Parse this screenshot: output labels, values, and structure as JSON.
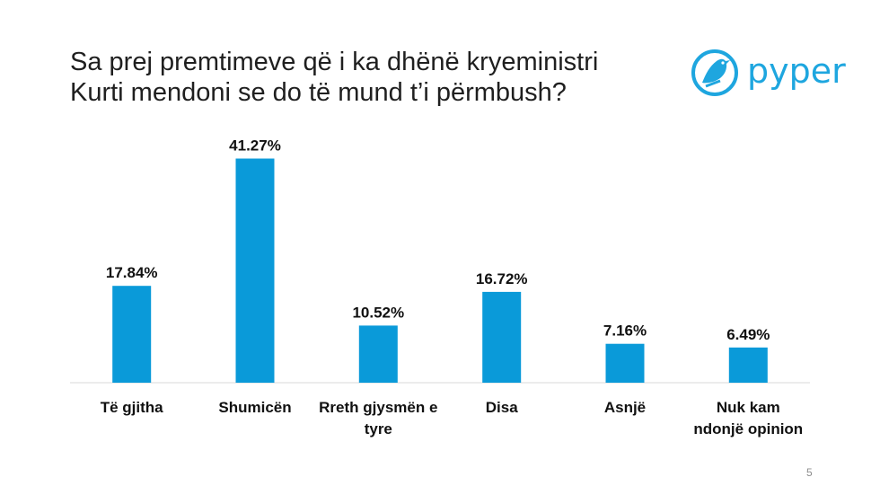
{
  "title": "Sa prej premtimeve që i ka dhënë kryeministri Kurti mendoni se do të mund t’i përmbush?",
  "logo": {
    "text": "pyper",
    "icon": "bird-icon",
    "color": "#1ea6df"
  },
  "slide_number": "5",
  "colors": {
    "bar": "#0a9ad9",
    "axis": "#d9d9d9"
  },
  "chart_data": {
    "type": "bar",
    "categories": [
      [
        "Të gjitha"
      ],
      [
        "Shumicën"
      ],
      [
        "Rreth gjysmën e",
        "tyre"
      ],
      [
        "Disa"
      ],
      [
        "Asnjë"
      ],
      [
        "Nuk kam",
        "ndonjë opinion"
      ]
    ],
    "values": [
      17.84,
      41.27,
      10.52,
      16.72,
      7.16,
      6.49
    ],
    "value_labels": [
      "17.84%",
      "41.27%",
      "10.52%",
      "16.72%",
      "7.16%",
      "6.49%"
    ],
    "ylim": [
      0,
      45
    ],
    "grid": false,
    "legend": "none"
  }
}
